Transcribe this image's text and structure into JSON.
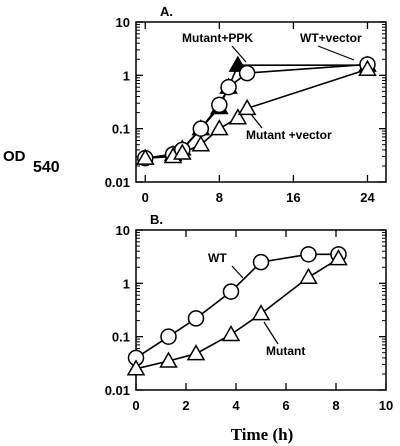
{
  "ylabel": {
    "main": "OD",
    "sub": "540"
  },
  "xlabel": "Time (h)",
  "chart_data": [
    {
      "type": "line",
      "panel_label": "A.",
      "x_ticks": [
        0,
        8,
        16,
        24
      ],
      "y_ticks": [
        0.01,
        0.1,
        1,
        10
      ],
      "y_tick_labels": [
        "0.01",
        "0.1",
        "1",
        "10"
      ],
      "x_tick_labels": [
        "0",
        "8",
        "16",
        "24"
      ],
      "xlim": [
        -1,
        26
      ],
      "ylim": [
        0.01,
        10
      ],
      "y_scale": "log",
      "series": [
        {
          "name": "Mutant+PPK",
          "marker": "filled-triangle",
          "x": [
            0,
            3,
            4,
            6,
            8,
            9,
            10,
            24
          ],
          "y": [
            0.028,
            0.033,
            0.042,
            0.1,
            0.25,
            0.6,
            1.55,
            1.55
          ]
        },
        {
          "name": "WT+vector",
          "marker": "open-circle",
          "x": [
            0,
            3,
            4,
            6,
            8,
            9,
            11,
            24
          ],
          "y": [
            0.028,
            0.033,
            0.04,
            0.1,
            0.28,
            0.6,
            1.1,
            1.6
          ]
        },
        {
          "name": "Mutant +vector",
          "marker": "open-triangle",
          "x": [
            0,
            3,
            4,
            6,
            8,
            10,
            11,
            24
          ],
          "y": [
            0.028,
            0.03,
            0.035,
            0.05,
            0.1,
            0.16,
            0.24,
            1.3
          ]
        }
      ],
      "annotations": [
        {
          "text": "Mutant+PPK",
          "series": "Mutant+PPK",
          "pointer": true
        },
        {
          "text": "WT+vector",
          "series": "WT+vector",
          "pointer": true
        },
        {
          "text": "Mutant +vector",
          "series": "Mutant +vector",
          "pointer": true
        }
      ]
    },
    {
      "type": "line",
      "panel_label": "B.",
      "x_ticks": [
        0,
        2,
        4,
        6,
        8,
        10
      ],
      "x_tick_labels": [
        "0",
        "2",
        "4",
        "6",
        "8",
        "10"
      ],
      "y_ticks": [
        0.01,
        0.1,
        1,
        10
      ],
      "y_tick_labels": [
        "0.01",
        "0.1",
        "1",
        "10"
      ],
      "xlim": [
        0,
        10
      ],
      "ylim": [
        0.01,
        10
      ],
      "y_scale": "log",
      "series": [
        {
          "name": "WT",
          "marker": "open-circle",
          "x": [
            0,
            1.3,
            2.4,
            3.8,
            5.0,
            6.9,
            8.1
          ],
          "y": [
            0.04,
            0.1,
            0.22,
            0.7,
            2.5,
            3.5,
            3.5
          ]
        },
        {
          "name": "Mutant",
          "marker": "open-triangle",
          "x": [
            0,
            1.3,
            2.4,
            3.8,
            5.0,
            6.9,
            8.1
          ],
          "y": [
            0.025,
            0.035,
            0.048,
            0.11,
            0.27,
            1.3,
            2.9
          ]
        }
      ],
      "annotations": [
        {
          "text": "WT",
          "series": "WT",
          "pointer": true
        },
        {
          "text": "Mutant",
          "series": "Mutant",
          "pointer": true
        }
      ]
    }
  ]
}
